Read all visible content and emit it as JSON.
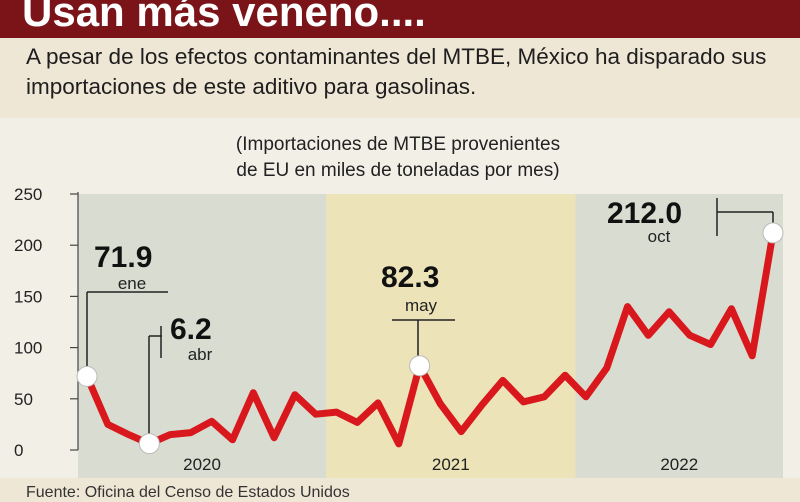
{
  "headline": "Usan más veneno....",
  "subheadline": "A pesar de los efectos contaminantes del MTBE, México ha disparado sus importaciones de este aditivo para gasolinas.",
  "source": "Fuente: Oficina del Censo de Estados Unidos",
  "colors": {
    "header_bg": "#7a1418",
    "line": "#d8181c",
    "band_2020": "#d9dcd0",
    "band_2021": "#ece3b8",
    "band_2022": "#d9dcd0",
    "page_bg": "#efe7d6"
  },
  "chart_data": {
    "type": "line",
    "title_lines": [
      "(Importaciones de MTBE provenientes",
      "de EU en miles de toneladas por mes)"
    ],
    "ylim": [
      0,
      250
    ],
    "yticks": [
      0,
      50,
      100,
      150,
      200,
      250
    ],
    "grid": false,
    "years": [
      "2020",
      "2021",
      "2022"
    ],
    "series": [
      {
        "values": [
          71.9,
          25,
          15,
          6.2,
          15,
          17,
          28,
          10,
          56,
          12,
          54,
          35,
          37,
          27,
          46,
          6,
          82.3,
          45,
          18,
          44,
          68,
          47,
          52,
          73,
          52,
          80,
          140,
          112,
          135,
          112,
          103,
          138,
          92,
          212.0
        ]
      }
    ],
    "annotations": [
      {
        "index": 0,
        "value": "71.9",
        "label": "ene"
      },
      {
        "index": 3,
        "value": "6.2",
        "label": "abr"
      },
      {
        "index": 16,
        "value": "82.3",
        "label": "may"
      },
      {
        "index": 33,
        "value": "212.0",
        "label": "oct"
      }
    ]
  }
}
